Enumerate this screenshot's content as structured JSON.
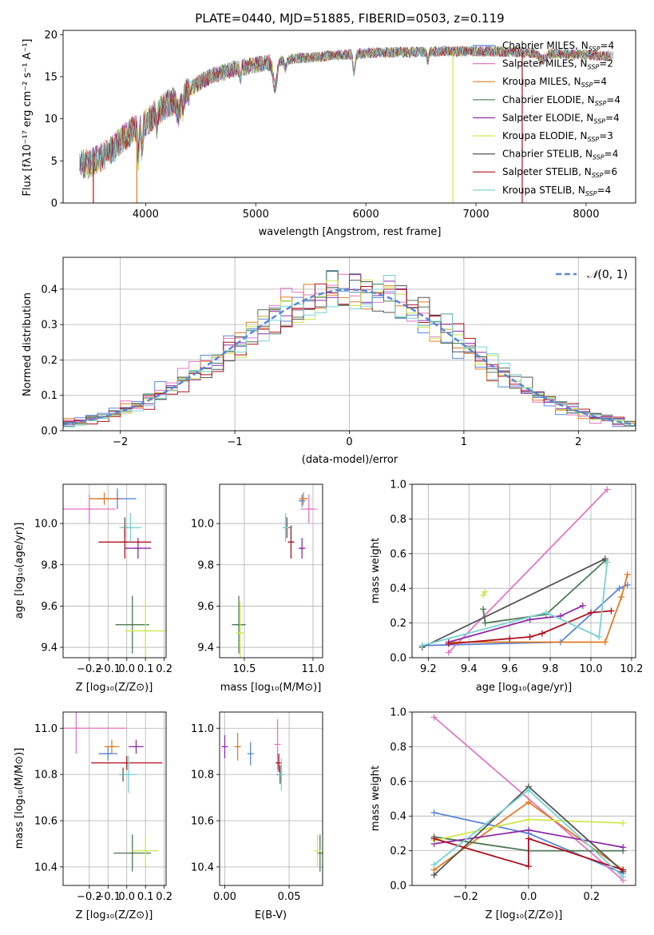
{
  "colors": {
    "chabrier_miles": "#5b86d6",
    "salpeter_miles": "#e377c2",
    "kroupa_miles": "#e07b22",
    "chabrier_elodie": "#4e7a55",
    "salpeter_elodie": "#8e2ca8",
    "kroupa_elodie": "#cde84a",
    "chabrier_stelib": "#555555",
    "salpeter_stelib": "#b01020",
    "kroupa_stelib": "#78d2d2"
  },
  "chart_data": [
    {
      "id": "spectrum",
      "type": "line",
      "title": "PLATE=0440, MJD=51885, FIBERID=0503, z=0.119",
      "xlabel": "wavelength [Angstrom, rest frame]",
      "ylabel": "Flux [fλ10⁻¹⁷ erg cm⁻² s⁻¹ A⁻¹]",
      "xlim": [
        3250,
        8450
      ],
      "ylim": [
        0,
        20.5
      ],
      "xticks": [
        "4000",
        "5000",
        "6000",
        "7000",
        "8000"
      ],
      "yticks": [
        "0",
        "5",
        "10",
        "15",
        "20"
      ],
      "legend_position": "top-right",
      "series": [
        {
          "name": "Chabrier MILES, N",
          "sub": "SSP",
          "suffix": "=4",
          "color": "#5b86d6"
        },
        {
          "name": "Salpeter MILES, N",
          "sub": "SSP",
          "suffix": "=2",
          "color": "#e377c2"
        },
        {
          "name": "Kroupa MILES, N",
          "sub": "SSP",
          "suffix": "=4",
          "color": "#e07b22"
        },
        {
          "name": "Chabrier ELODIE, N",
          "sub": "SSP",
          "suffix": "=4",
          "color": "#4e7a55"
        },
        {
          "name": "Salpeter ELODIE, N",
          "sub": "SSP",
          "suffix": "=4",
          "color": "#8e2ca8"
        },
        {
          "name": "Kroupa ELODIE, N",
          "sub": "SSP",
          "suffix": "=3",
          "color": "#cde84a"
        },
        {
          "name": "Chabrier STELIB, N",
          "sub": "SSP",
          "suffix": "=4",
          "color": "#555555"
        },
        {
          "name": "Salpeter STELIB, N",
          "sub": "SSP",
          "suffix": "=6",
          "color": "#b01020"
        },
        {
          "name": "Kroupa STELIB, N",
          "sub": "SSP",
          "suffix": "=4",
          "color": "#78d2d2"
        }
      ],
      "continuum": {
        "x": [
          3400,
          3500,
          3600,
          3700,
          3800,
          3900,
          4000,
          4100,
          4200,
          4300,
          4400,
          4500,
          4600,
          4800,
          5000,
          5200,
          5400,
          5600,
          5800,
          6000,
          6200,
          6400,
          6600,
          6800,
          7000,
          7200,
          7400,
          7600,
          7800,
          8000,
          8250
        ],
        "y": [
          4.6,
          4.7,
          5.5,
          6.4,
          7.8,
          8.8,
          9.5,
          10.8,
          11.8,
          12.5,
          13.4,
          14.4,
          15.1,
          15.9,
          16.4,
          16.9,
          17.2,
          17.4,
          17.6,
          17.8,
          17.9,
          17.9,
          18.0,
          18.0,
          18.0,
          18.0,
          17.9,
          17.8,
          17.7,
          17.6,
          17.4
        ]
      },
      "drops": [
        {
          "x": 3525,
          "color": "#b01020"
        },
        {
          "x": 3920,
          "color": "#e07b22"
        },
        {
          "x": 6790,
          "color": "#cde84a"
        },
        {
          "x": 7420,
          "color": "#b01020"
        }
      ]
    },
    {
      "id": "residuals",
      "type": "histogram",
      "xlabel": "(data-model)/error",
      "ylabel": "Normed distribution",
      "xlim": [
        -2.5,
        2.5
      ],
      "ylim": [
        0,
        0.49
      ],
      "xticks": [
        "−2",
        "−1",
        "0",
        "1",
        "2"
      ],
      "yticks": [
        "0.0",
        "0.1",
        "0.2",
        "0.3",
        "0.4"
      ],
      "bin_width": 0.1,
      "reference": {
        "name": "N(0,1)",
        "label_main": "𝒩",
        "label_rest": "(0, 1)",
        "mean": 0,
        "std": 1,
        "color": "#5b86d6"
      },
      "legend_position": "top-right"
    },
    {
      "id": "age-vs-Z",
      "type": "scatter",
      "xlabel": "Z [log₁₀(Z/Z⊙)]",
      "ylabel": "age  [log₁₀(age/yr)]",
      "xlim": [
        -0.34,
        0.21
      ],
      "ylim": [
        9.35,
        10.19
      ],
      "xticks": [
        "−0.2",
        "−0.1",
        "0.0",
        "0.1",
        "0.2"
      ],
      "yticks": [
        "9.4",
        "9.6",
        "9.8",
        "10.0"
      ],
      "points": [
        {
          "x": -0.05,
          "y": 10.12,
          "xerr": 0.1,
          "yerr": 0.05,
          "color": "#5b86d6"
        },
        {
          "x": -0.2,
          "y": 10.07,
          "xerr": 0.14,
          "yerr": 0.07,
          "color": "#e377c2"
        },
        {
          "x": -0.12,
          "y": 10.12,
          "xerr": 0.08,
          "yerr": 0.03,
          "color": "#e07b22"
        },
        {
          "x": 0.03,
          "y": 9.51,
          "xerr": 0.09,
          "yerr": 0.14,
          "color": "#4e7a55"
        },
        {
          "x": 0.06,
          "y": 9.88,
          "xerr": 0.07,
          "yerr": 0.05,
          "color": "#8e2ca8"
        },
        {
          "x": 0.1,
          "y": 9.48,
          "xerr": 0.11,
          "yerr": 0.15,
          "color": "#cde84a"
        },
        {
          "x": -0.01,
          "y": 9.98,
          "xerr": 0.02,
          "yerr": 0.05,
          "color": "#555555"
        },
        {
          "x": -0.01,
          "y": 9.91,
          "xerr": 0.14,
          "yerr": 0.08,
          "color": "#b01020"
        },
        {
          "x": 0.02,
          "y": 9.98,
          "xerr": 0.06,
          "yerr": 0.07,
          "color": "#78d2d2"
        }
      ]
    },
    {
      "id": "age-vs-mass",
      "type": "scatter",
      "xlabel": "mass [log₁₀(M/M⊙)]",
      "ylabel": "",
      "xlim": [
        10.32,
        11.07
      ],
      "ylim": [
        9.35,
        10.19
      ],
      "xticks": [
        "10.5",
        "11.0"
      ],
      "yticks": [
        "9.4",
        "9.6",
        "9.8",
        "10.0"
      ],
      "points": [
        {
          "x": 10.92,
          "y": 10.11,
          "xerr": 0.02,
          "yerr": 0.03,
          "color": "#5b86d6"
        },
        {
          "x": 10.97,
          "y": 10.07,
          "xerr": 0.06,
          "yerr": 0.07,
          "color": "#e377c2"
        },
        {
          "x": 10.93,
          "y": 10.12,
          "xerr": 0.03,
          "yerr": 0.03,
          "color": "#e07b22"
        },
        {
          "x": 10.46,
          "y": 9.51,
          "xerr": 0.05,
          "yerr": 0.14,
          "color": "#4e7a55"
        },
        {
          "x": 10.92,
          "y": 9.88,
          "xerr": 0.02,
          "yerr": 0.05,
          "color": "#8e2ca8"
        },
        {
          "x": 10.47,
          "y": 9.47,
          "xerr": 0.03,
          "yerr": 0.15,
          "color": "#cde84a"
        },
        {
          "x": 10.81,
          "y": 9.98,
          "xerr": 0.02,
          "yerr": 0.05,
          "color": "#555555"
        },
        {
          "x": 10.84,
          "y": 9.91,
          "xerr": 0.02,
          "yerr": 0.08,
          "color": "#b01020"
        },
        {
          "x": 10.8,
          "y": 9.98,
          "xerr": 0.02,
          "yerr": 0.07,
          "color": "#78d2d2"
        }
      ]
    },
    {
      "id": "massweight-vs-age",
      "type": "line",
      "xlabel": "age  [log₁₀(age/yr)]",
      "ylabel": "mass weight",
      "xlim": [
        9.12,
        10.22
      ],
      "ylim": [
        0,
        1.0
      ],
      "xticks": [
        "9.2",
        "9.4",
        "9.6",
        "9.8",
        "10.0",
        "10.2"
      ],
      "yticks": [
        "0.0",
        "0.2",
        "0.4",
        "0.6",
        "0.8",
        "1.0"
      ],
      "series": [
        {
          "color": "#5b86d6",
          "x": [
            9.17,
            9.85,
            10.14,
            10.18
          ],
          "y": [
            0.07,
            0.09,
            0.4,
            0.42
          ]
        },
        {
          "color": "#e377c2",
          "x": [
            9.3,
            10.08
          ],
          "y": [
            0.03,
            0.97
          ]
        },
        {
          "color": "#e07b22",
          "x": [
            9.3,
            10.07,
            10.15,
            10.18
          ],
          "y": [
            0.09,
            0.09,
            0.35,
            0.48
          ]
        },
        {
          "color": "#4e7a55",
          "x": [
            9.47,
            9.48,
            9.78,
            10.07
          ],
          "y": [
            0.28,
            0.2,
            0.25,
            0.56
          ]
        },
        {
          "color": "#8e2ca8",
          "x": [
            9.3,
            9.7,
            9.85,
            9.96
          ],
          "y": [
            0.09,
            0.22,
            0.24,
            0.3
          ]
        },
        {
          "color": "#cde84a",
          "x": [
            9.47,
            9.48
          ],
          "y": [
            0.36,
            0.38
          ]
        },
        {
          "color": "#555555",
          "x": [
            9.17,
            10.07
          ],
          "y": [
            0.06,
            0.57
          ]
        },
        {
          "color": "#b01020",
          "x": [
            9.3,
            9.6,
            9.7,
            9.76,
            10.0,
            10.1
          ],
          "y": [
            0.08,
            0.11,
            0.12,
            0.14,
            0.26,
            0.27
          ]
        },
        {
          "color": "#78d2d2",
          "x": [
            9.17,
            9.78,
            10.04,
            10.08
          ],
          "y": [
            0.07,
            0.26,
            0.12,
            0.55
          ]
        }
      ]
    },
    {
      "id": "mass-vs-Z",
      "type": "scatter",
      "xlabel": "Z [log₁₀(Z/Z⊙)]",
      "ylabel": "mass [log₁₀(M/M⊙)]",
      "xlim": [
        -0.34,
        0.21
      ],
      "ylim": [
        10.32,
        11.07
      ],
      "xticks": [
        "−0.2",
        "−0.1",
        "0.0",
        "0.1",
        "0.2"
      ],
      "yticks": [
        "10.4",
        "10.6",
        "10.8",
        "11.0"
      ],
      "points": [
        {
          "x": -0.1,
          "y": 10.89,
          "xerr": 0.05,
          "yerr": 0.03,
          "color": "#5b86d6"
        },
        {
          "x": -0.27,
          "y": 11.0,
          "xerr": 0.27,
          "yerr": 0.11,
          "color": "#e377c2"
        },
        {
          "x": -0.08,
          "y": 10.92,
          "xerr": 0.04,
          "yerr": 0.03,
          "color": "#e07b22"
        },
        {
          "x": 0.03,
          "y": 10.46,
          "xerr": 0.1,
          "yerr": 0.08,
          "color": "#4e7a55"
        },
        {
          "x": 0.05,
          "y": 10.92,
          "xerr": 0.04,
          "yerr": 0.03,
          "color": "#8e2ca8"
        },
        {
          "x": 0.1,
          "y": 10.47,
          "xerr": 0.07,
          "yerr": 0.07,
          "color": "#cde84a"
        },
        {
          "x": -0.02,
          "y": 10.8,
          "xerr": 0.02,
          "yerr": 0.03,
          "color": "#555555"
        },
        {
          "x": 0.0,
          "y": 10.85,
          "xerr": 0.19,
          "yerr": 0.03,
          "color": "#b01020"
        },
        {
          "x": 0.01,
          "y": 10.8,
          "xerr": 0.05,
          "yerr": 0.08,
          "color": "#78d2d2"
        }
      ]
    },
    {
      "id": "mass-vs-EBV",
      "type": "scatter",
      "xlabel": "E(B-V)",
      "ylabel": "",
      "xlim": [
        -0.004,
        0.076
      ],
      "ylim": [
        10.32,
        11.07
      ],
      "xticks": [
        "0.00",
        "0.05"
      ],
      "yticks": [
        "10.4",
        "10.6",
        "10.8",
        "11.0"
      ],
      "points": [
        {
          "x": 0.02,
          "y": 10.89,
          "xerr": 0.0,
          "yerr": 0.05,
          "color": "#5b86d6"
        },
        {
          "x": 0.041,
          "y": 10.93,
          "xerr": 0.0,
          "yerr": 0.11,
          "color": "#e377c2"
        },
        {
          "x": 0.01,
          "y": 10.92,
          "xerr": 0.0,
          "yerr": 0.06,
          "color": "#e07b22"
        },
        {
          "x": 0.074,
          "y": 10.46,
          "xerr": 0.0,
          "yerr": 0.08,
          "color": "#4e7a55"
        },
        {
          "x": 0.0,
          "y": 10.92,
          "xerr": 0.0,
          "yerr": 0.05,
          "color": "#8e2ca8"
        },
        {
          "x": 0.072,
          "y": 10.47,
          "xerr": 0.0,
          "yerr": 0.07,
          "color": "#cde84a"
        },
        {
          "x": 0.043,
          "y": 10.8,
          "xerr": 0.0,
          "yerr": 0.04,
          "color": "#555555"
        },
        {
          "x": 0.042,
          "y": 10.85,
          "xerr": 0.0,
          "yerr": 0.04,
          "color": "#b01020"
        },
        {
          "x": 0.044,
          "y": 10.8,
          "xerr": 0.0,
          "yerr": 0.07,
          "color": "#78d2d2"
        }
      ]
    },
    {
      "id": "massweight-vs-Z",
      "type": "line",
      "xlabel": "Z [log₁₀(Z/Z⊙)]",
      "ylabel": "mass weight",
      "xlim": [
        -0.37,
        0.34
      ],
      "ylim": [
        0,
        1.0
      ],
      "xticks": [
        "−0.2",
        "0.0",
        "0.2"
      ],
      "yticks": [
        "0.0",
        "0.2",
        "0.4",
        "0.6",
        "0.8",
        "1.0"
      ],
      "series": [
        {
          "color": "#5b86d6",
          "x": [
            -0.3,
            0.0,
            0.3
          ],
          "y": [
            0.42,
            0.3,
            0.07
          ]
        },
        {
          "color": "#e377c2",
          "x": [
            -0.3,
            0.3
          ],
          "y": [
            0.97,
            0.03
          ]
        },
        {
          "color": "#e07b22",
          "x": [
            -0.3,
            0.0,
            0.3
          ],
          "y": [
            0.09,
            0.48,
            0.09
          ]
        },
        {
          "color": "#4e7a55",
          "x": [
            -0.3,
            0.0,
            0.3
          ],
          "y": [
            0.28,
            0.2,
            0.2
          ]
        },
        {
          "color": "#8e2ca8",
          "x": [
            -0.3,
            0.0,
            0.3
          ],
          "y": [
            0.24,
            0.32,
            0.22
          ]
        },
        {
          "color": "#cde84a",
          "x": [
            -0.3,
            0.0,
            0.3
          ],
          "y": [
            0.26,
            0.38,
            0.36
          ]
        },
        {
          "color": "#555555",
          "x": [
            -0.3,
            0.0,
            0.3
          ],
          "y": [
            0.06,
            0.57,
            0.08
          ]
        },
        {
          "color": "#b01020",
          "x": [
            -0.3,
            0.0,
            0.0,
            0.3
          ],
          "y": [
            0.27,
            0.11,
            0.27,
            0.09
          ]
        },
        {
          "color": "#78d2d2",
          "x": [
            -0.3,
            0.0,
            0.3
          ],
          "y": [
            0.12,
            0.55,
            0.05
          ]
        }
      ]
    }
  ]
}
